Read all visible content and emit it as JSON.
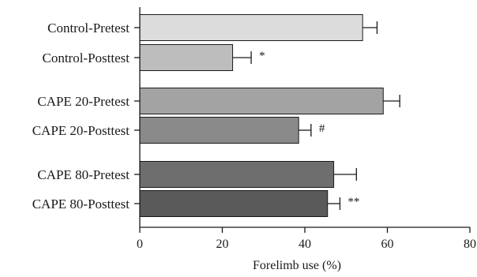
{
  "chart_data": {
    "type": "bar",
    "orientation": "horizontal",
    "xlabel": "Forelimb use (%)",
    "xlim": [
      0,
      80
    ],
    "xticks": [
      0,
      20,
      40,
      60,
      80
    ],
    "grid": false,
    "bars": [
      {
        "label": "Control-Pretest",
        "value": 54.0,
        "error": 3.5,
        "color": "#dcdcdc",
        "marker": ""
      },
      {
        "label": "Control-Posttest",
        "value": 22.5,
        "error": 4.5,
        "color": "#bdbdbd",
        "marker": "*"
      },
      {
        "label": "CAPE 20-Pretest",
        "value": 59.0,
        "error": 4.0,
        "color": "#a3a3a3",
        "marker": ""
      },
      {
        "label": "CAPE 20-Posttest",
        "value": 38.5,
        "error": 3.0,
        "color": "#8a8a8a",
        "marker": "#"
      },
      {
        "label": "CAPE 80-Pretest",
        "value": 47.0,
        "error": 5.5,
        "color": "#6e6e6e",
        "marker": ""
      },
      {
        "label": "CAPE 80-Posttest",
        "value": 45.5,
        "error": 3.0,
        "color": "#5a5a5a",
        "marker": "**"
      }
    ]
  }
}
